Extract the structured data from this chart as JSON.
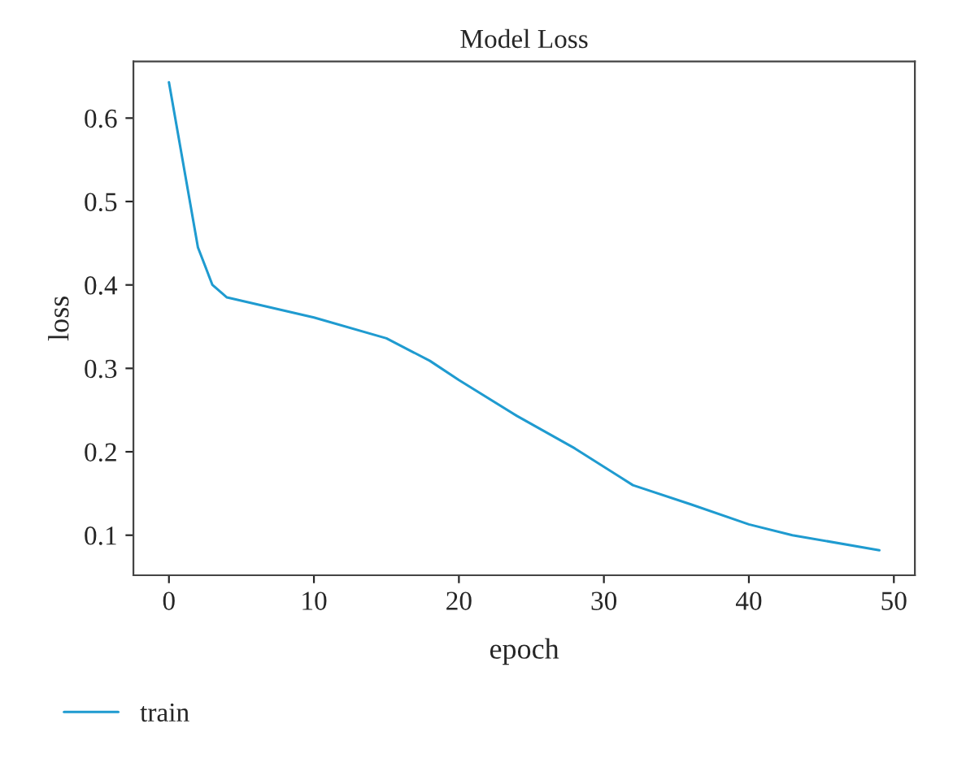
{
  "chart_data": {
    "type": "line",
    "title": "Model Loss",
    "xlabel": "epoch",
    "ylabel": "loss",
    "series": [
      {
        "name": "train",
        "color": "#1f9bd0",
        "x": [
          0,
          2,
          3,
          4,
          10,
          15,
          18,
          20,
          24,
          28,
          32,
          36,
          40,
          43,
          49
        ],
        "values": [
          0.643,
          0.445,
          0.4,
          0.385,
          0.361,
          0.336,
          0.309,
          0.286,
          0.243,
          0.204,
          0.16,
          0.137,
          0.113,
          0.1,
          0.082
        ]
      }
    ],
    "xlim": [
      -2.45,
      51.45
    ],
    "ylim": [
      0.052,
      0.668
    ],
    "xticks": [
      0,
      10,
      20,
      30,
      40,
      50
    ],
    "yticks": [
      0.1,
      0.2,
      0.3,
      0.4,
      0.5,
      0.6
    ],
    "grid": false,
    "legend": "bottom left",
    "marker": "none",
    "line_style": "solid"
  }
}
